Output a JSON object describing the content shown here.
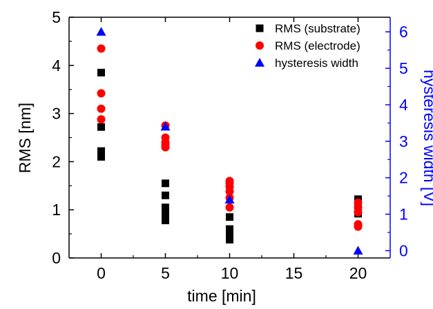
{
  "chart_data": {
    "type": "scatter",
    "xlabel": "time [min]",
    "ylabel": "RMS [nm]",
    "y2label": "hysteresis width [V]",
    "x_ticks": [
      0,
      5,
      10,
      15,
      20
    ],
    "y_ticks": [
      0,
      1,
      2,
      3,
      4,
      5
    ],
    "y2_ticks": [
      0,
      1,
      2,
      3,
      4,
      5,
      6
    ],
    "xlim": [
      -2.5,
      22.5
    ],
    "ylim": [
      0,
      5
    ],
    "y2lim": [
      -0.2,
      6.4
    ],
    "legend_position": "top-right",
    "colors": {
      "substrate": "#000000",
      "electrode": "#ff0000",
      "hysteresis": "#0000ff",
      "right_axis": "#0000ff"
    },
    "series": [
      {
        "name": "RMS (substrate)",
        "marker": "square",
        "axis": "left",
        "x": [
          0,
          0,
          0,
          0,
          0,
          5,
          5,
          5,
          5,
          5,
          5,
          5,
          10,
          10,
          10,
          10,
          10,
          20,
          20,
          20,
          20
        ],
        "y": [
          3.85,
          2.72,
          2.22,
          2.15,
          2.1,
          1.55,
          1.3,
          1.05,
          0.98,
          0.9,
          0.82,
          0.78,
          0.85,
          0.6,
          0.5,
          0.42,
          0.38,
          1.22,
          1.12,
          1.02,
          0.92
        ]
      },
      {
        "name": "RMS (electrode)",
        "marker": "circle",
        "axis": "left",
        "x": [
          0,
          0,
          0,
          0,
          5,
          5,
          5,
          5,
          5,
          10,
          10,
          10,
          10,
          10,
          10,
          20,
          20,
          20,
          20,
          20
        ],
        "y": [
          4.35,
          3.42,
          3.1,
          2.88,
          2.75,
          2.5,
          2.4,
          2.35,
          2.3,
          1.6,
          1.55,
          1.48,
          1.38,
          1.25,
          1.05,
          1.15,
          1.05,
          0.95,
          0.7,
          0.65
        ]
      },
      {
        "name": "hysteresis width",
        "marker": "triangle",
        "axis": "right",
        "x": [
          0,
          5,
          10,
          20
        ],
        "y": [
          6.0,
          3.4,
          1.4,
          0.0
        ]
      }
    ]
  }
}
